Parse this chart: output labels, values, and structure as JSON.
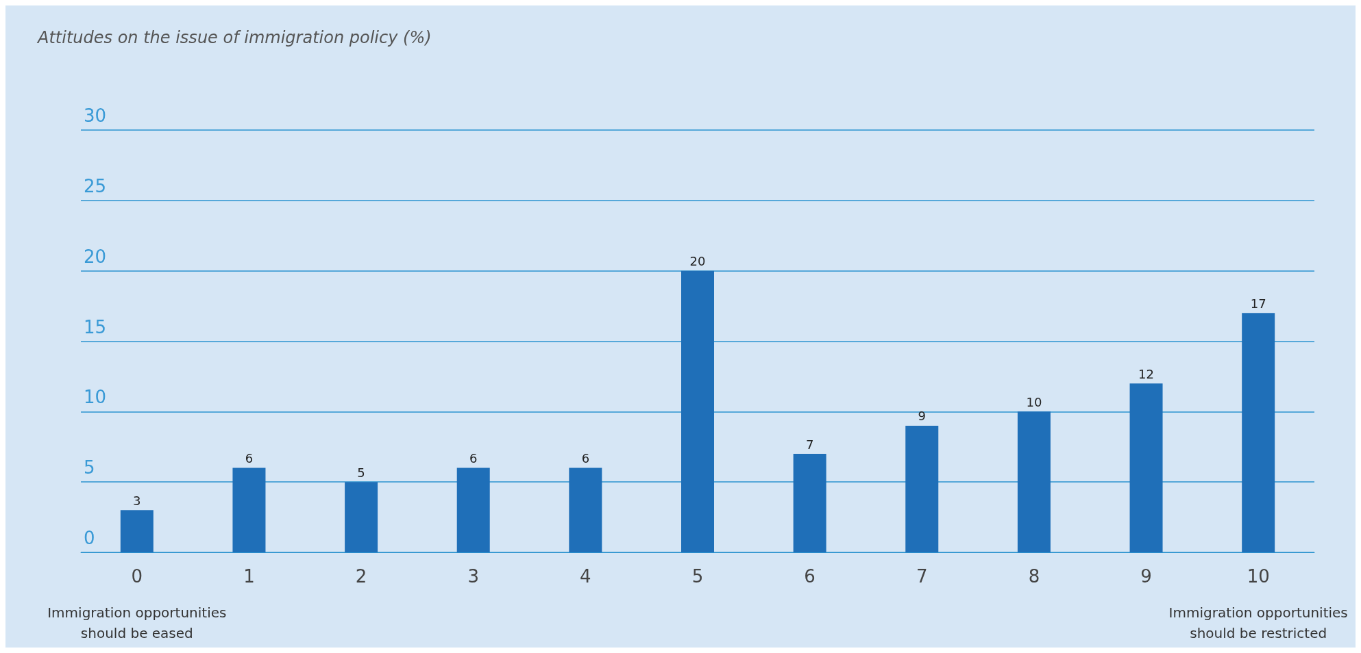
{
  "chart_data": {
    "type": "bar",
    "title": "Attitudes on the issue of immigration policy (%)",
    "categories": [
      "0",
      "1",
      "2",
      "3",
      "4",
      "5",
      "6",
      "7",
      "8",
      "9",
      "10"
    ],
    "values": [
      3,
      6,
      5,
      6,
      6,
      20,
      7,
      9,
      10,
      12,
      17
    ],
    "color": "#1f6fb8",
    "ylim": [
      0,
      30
    ],
    "yticks": [
      0,
      5,
      10,
      15,
      20,
      25,
      30
    ],
    "grid": "y",
    "data_labels": true,
    "annotations": [
      "Immigration opportunities\nshould be eased",
      "Immigration opportunities\nshould be restricted"
    ]
  }
}
